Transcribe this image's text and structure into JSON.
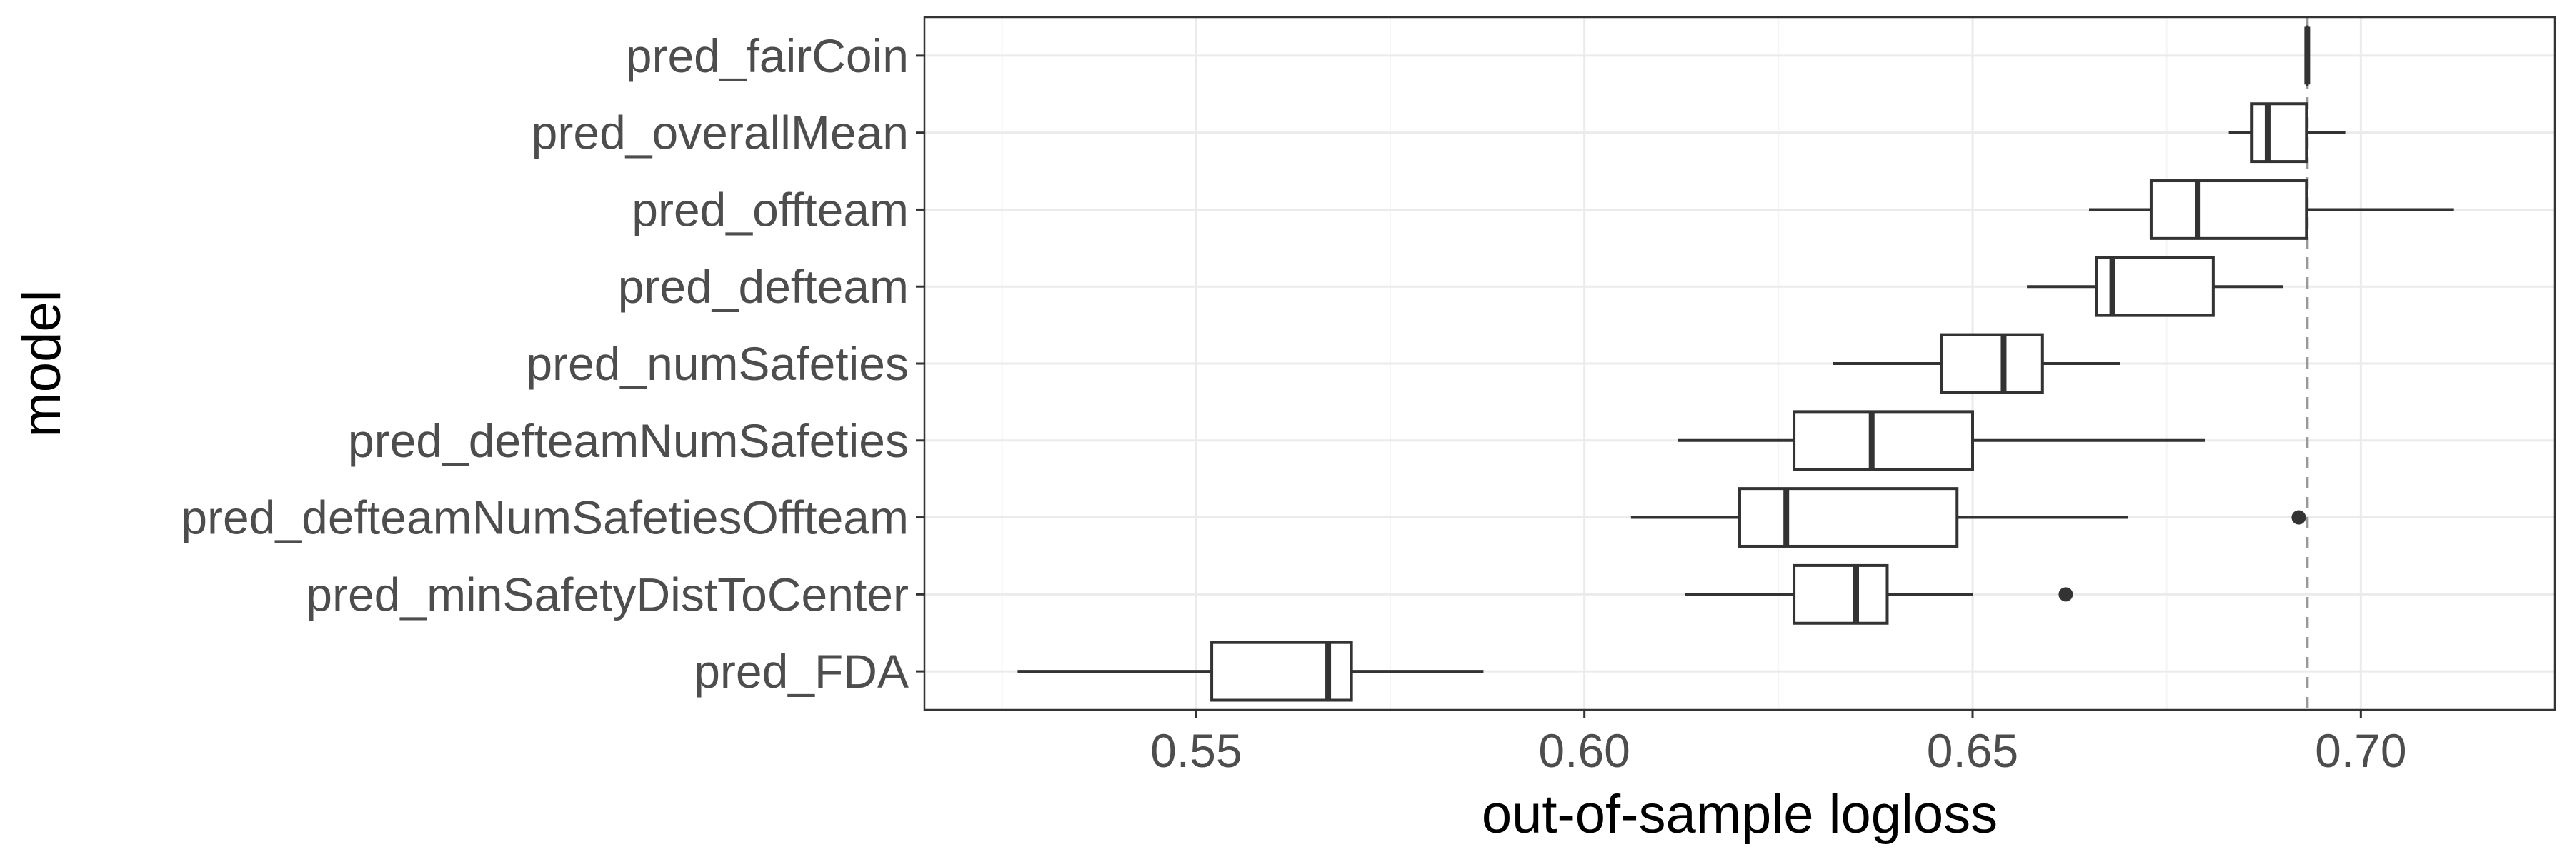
{
  "chart_data": {
    "type": "boxplot",
    "orientation": "horizontal",
    "xlabel": "out-of-sample logloss",
    "ylabel": "model",
    "xlim": [
      0.515,
      0.725
    ],
    "x_ticks": [
      0.55,
      0.6,
      0.65,
      0.7
    ],
    "x_tick_labels": [
      "0.55",
      "0.60",
      "0.65",
      "0.70"
    ],
    "grid": true,
    "reference_line": {
      "x": 0.6931,
      "style": "dashed",
      "color": "#999999"
    },
    "categories": [
      "pred_fairCoin",
      "pred_overallMean",
      "pred_offteam",
      "pred_defteam",
      "pred_numSafeties",
      "pred_defteamNumSafeties",
      "pred_defteamNumSafetiesOffteam",
      "pred_minSafetyDistToCenter",
      "pred_FDA"
    ],
    "boxes": [
      {
        "label": "pred_fairCoin",
        "whisker_low": 0.6931,
        "q1": 0.6931,
        "median": 0.6931,
        "q3": 0.6931,
        "whisker_high": 0.6931,
        "outliers": []
      },
      {
        "label": "pred_overallMean",
        "whisker_low": 0.683,
        "q1": 0.686,
        "median": 0.688,
        "q3": 0.693,
        "whisker_high": 0.698,
        "outliers": []
      },
      {
        "label": "pred_offteam",
        "whisker_low": 0.665,
        "q1": 0.673,
        "median": 0.679,
        "q3": 0.693,
        "whisker_high": 0.712,
        "outliers": []
      },
      {
        "label": "pred_defteam",
        "whisker_low": 0.657,
        "q1": 0.666,
        "median": 0.668,
        "q3": 0.681,
        "whisker_high": 0.69,
        "outliers": []
      },
      {
        "label": "pred_numSafeties",
        "whisker_low": 0.632,
        "q1": 0.646,
        "median": 0.654,
        "q3": 0.659,
        "whisker_high": 0.669,
        "outliers": []
      },
      {
        "label": "pred_defteamNumSafeties",
        "whisker_low": 0.612,
        "q1": 0.627,
        "median": 0.637,
        "q3": 0.65,
        "whisker_high": 0.68,
        "outliers": []
      },
      {
        "label": "pred_defteamNumSafetiesOffteam",
        "whisker_low": 0.606,
        "q1": 0.62,
        "median": 0.626,
        "q3": 0.648,
        "whisker_high": 0.67,
        "outliers": [
          0.692
        ]
      },
      {
        "label": "pred_minSafetyDistToCenter",
        "whisker_low": 0.613,
        "q1": 0.627,
        "median": 0.635,
        "q3": 0.639,
        "whisker_high": 0.65,
        "outliers": [
          0.662
        ]
      },
      {
        "label": "pred_FDA",
        "whisker_low": 0.527,
        "q1": 0.552,
        "median": 0.567,
        "q3": 0.57,
        "whisker_high": 0.587,
        "outliers": []
      }
    ],
    "colors": {
      "box_line": "#333333",
      "box_fill": "#ffffff",
      "grid_major": "#ebebeb",
      "grid_minor": "#f5f5f5",
      "panel_border": "#333333",
      "tick_label": "#4d4d4d",
      "axis_title": "#000000"
    }
  }
}
